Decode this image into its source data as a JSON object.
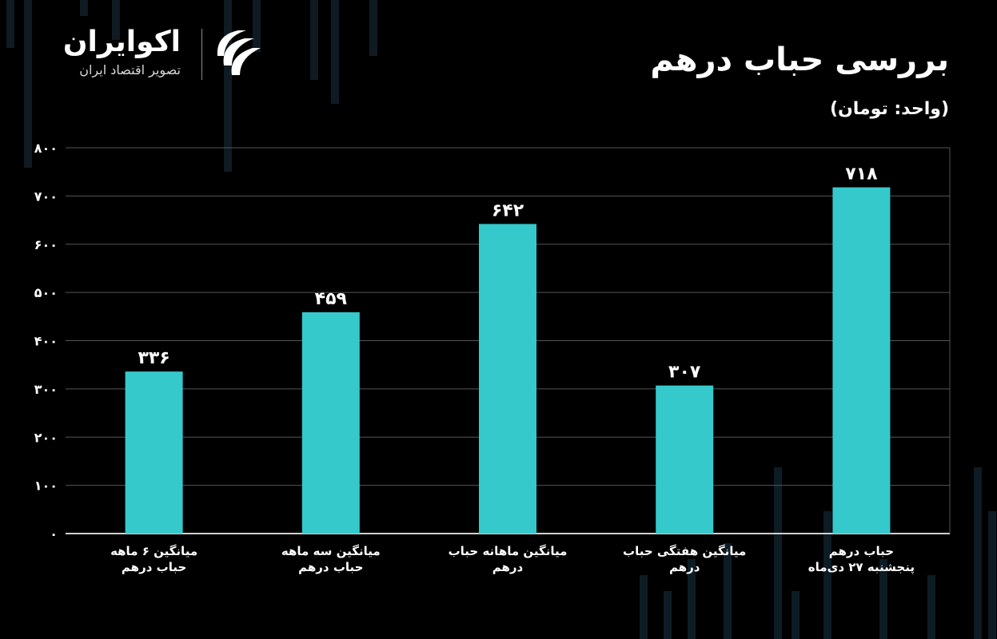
{
  "logo": {
    "name": "اکوایران",
    "tagline": "تصویر اقتصاد ایران",
    "icon": "ecoiran-logo-icon"
  },
  "title": "بررسی حباب درهم",
  "unit_label": "(واحد: تومان)",
  "colors": {
    "background": "#000000",
    "bar": "#35c9cc",
    "grid": "#555555",
    "text": "#ffffff"
  },
  "chart_data": {
    "type": "bar",
    "categories": [
      "میانگین ۶ ماهه\nحباب درهم",
      "میانگین سه ماهه\nحباب درهم",
      "میانگین ماهانه حباب\nدرهم",
      "میانگین هفتگی حباب\nدرهم",
      "حباب درهم\nپنجشنبه ۲۷ دی‌ماه"
    ],
    "values": [
      336,
      459,
      642,
      307,
      718
    ],
    "value_labels": [
      "۳۳۶",
      "۴۵۹",
      "۶۴۲",
      "۳۰۷",
      "۷۱۸"
    ],
    "title": "بررسی حباب درهم",
    "ylabel": "(واحد: تومان)",
    "ylim": [
      0,
      800
    ],
    "yticks": [
      0,
      100,
      200,
      300,
      400,
      500,
      600,
      700,
      800
    ],
    "ytick_labels": [
      "۰",
      "۱۰۰",
      "۲۰۰",
      "۳۰۰",
      "۴۰۰",
      "۵۰۰",
      "۶۰۰",
      "۷۰۰",
      "۸۰۰"
    ],
    "grid": true,
    "legend": "none"
  }
}
